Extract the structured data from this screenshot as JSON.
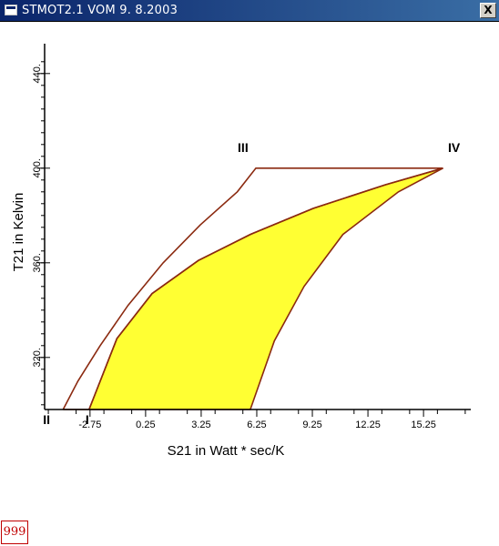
{
  "window": {
    "title": "STMOT2.1 VOM  9. 8.2003",
    "close_label": "X"
  },
  "badge": {
    "text": "999"
  },
  "chart_data": {
    "type": "line",
    "xlabel": "S21 in Watt * sec/K",
    "ylabel": "T21 in Kelvin",
    "x_ticks": [
      "-2.75",
      "0.25",
      "3.25",
      "6.25",
      "9.25",
      "12.25",
      "15.25"
    ],
    "y_ticks": [
      "320.",
      "360.",
      "400.",
      "440."
    ],
    "xlim": [
      -5.2,
      17.8
    ],
    "ylim": [
      298,
      448
    ],
    "point_labels": [
      {
        "label": "I",
        "x": -2.7,
        "y": 298
      },
      {
        "label": "II",
        "x": -4.9,
        "y": 298
      },
      {
        "label": "III",
        "x": 6.0,
        "y": 403
      },
      {
        "label": "IV",
        "x": 16.6,
        "y": 403
      }
    ],
    "outer_cycle": [
      {
        "x": -4.2,
        "y": 298
      },
      {
        "x": -3.4,
        "y": 310
      },
      {
        "x": -2.2,
        "y": 325
      },
      {
        "x": -0.7,
        "y": 342
      },
      {
        "x": 1.2,
        "y": 360
      },
      {
        "x": 3.2,
        "y": 376
      },
      {
        "x": 5.2,
        "y": 390
      },
      {
        "x": 6.2,
        "y": 400
      },
      {
        "x": 16.3,
        "y": 400
      },
      {
        "x": 13.2,
        "y": 393
      },
      {
        "x": 9.3,
        "y": 383
      },
      {
        "x": 5.9,
        "y": 372
      },
      {
        "x": 3.1,
        "y": 361
      },
      {
        "x": 0.6,
        "y": 347
      },
      {
        "x": -1.3,
        "y": 328
      },
      {
        "x": -2.8,
        "y": 298
      },
      {
        "x": -4.2,
        "y": 298
      }
    ],
    "shaded_region": [
      {
        "x": -2.8,
        "y": 298
      },
      {
        "x": -1.3,
        "y": 328
      },
      {
        "x": 0.6,
        "y": 347
      },
      {
        "x": 3.1,
        "y": 361
      },
      {
        "x": 5.9,
        "y": 372
      },
      {
        "x": 9.3,
        "y": 383
      },
      {
        "x": 13.2,
        "y": 393
      },
      {
        "x": 16.3,
        "y": 400
      },
      {
        "x": 13.9,
        "y": 390
      },
      {
        "x": 10.9,
        "y": 372
      },
      {
        "x": 8.8,
        "y": 350
      },
      {
        "x": 7.2,
        "y": 327
      },
      {
        "x": 5.9,
        "y": 298
      },
      {
        "x": -2.8,
        "y": 298
      }
    ],
    "colors": {
      "curve": "#8b2a10",
      "fill": "#ffff33",
      "axis": "#000000"
    }
  }
}
